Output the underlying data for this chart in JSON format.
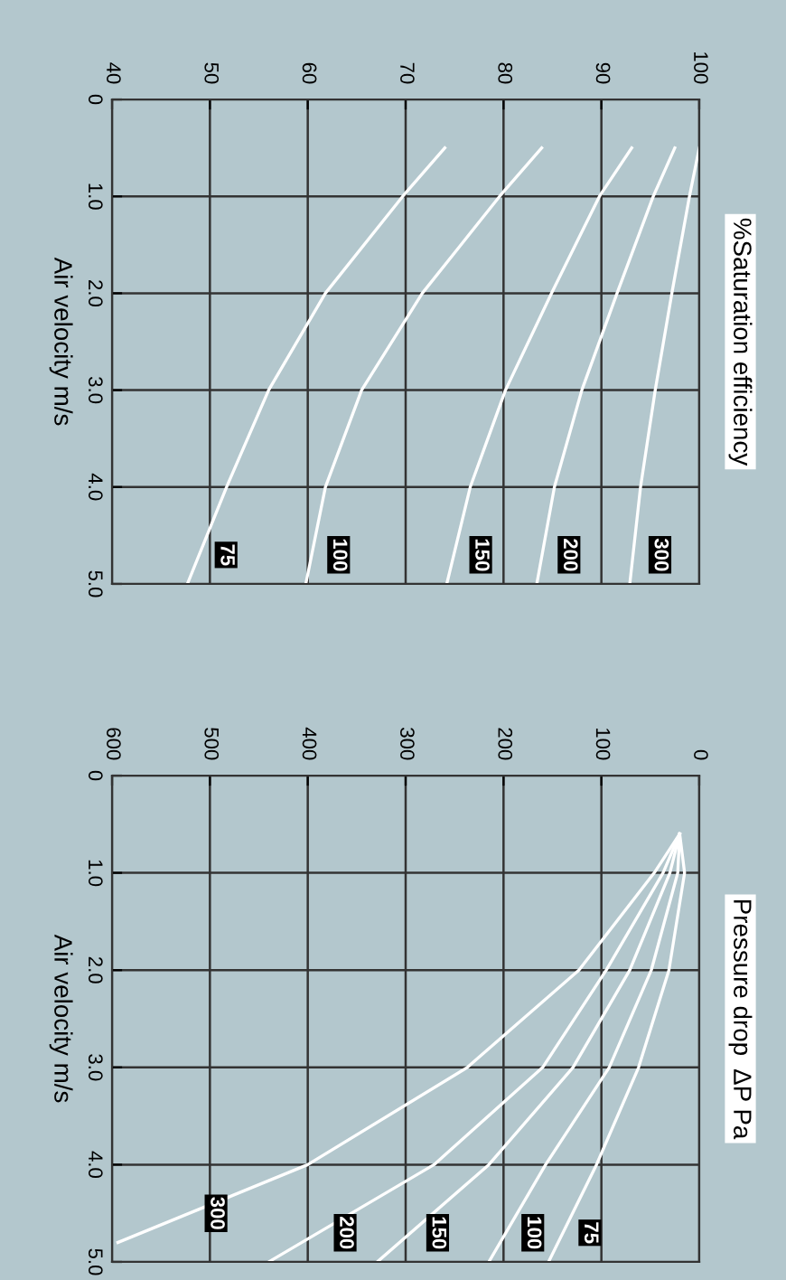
{
  "chart_data": [
    {
      "type": "line",
      "y2label": "%Saturation efficiency",
      "ylabel": "Air velocity m/s",
      "ylim": [
        5,
        0
      ],
      "yticks": [
        0,
        {
          "value": 1,
          "label": "1.0"
        },
        {
          "value": 2,
          "label": "2.0"
        },
        {
          "value": 3,
          "label": "3.0"
        },
        {
          "value": 4,
          "label": "4.0"
        },
        {
          "value": 5,
          "label": "5.0"
        }
      ],
      "xlim": [
        40,
        100
      ],
      "xticks": [
        40,
        50,
        60,
        70,
        80,
        90,
        100
      ],
      "grid": true,
      "legend": false,
      "marker": "none",
      "line_style": "solid",
      "series": [
        {
          "name": "75",
          "color": "#ffffff",
          "x": [
            74.0,
            69.7,
            61.8,
            56.0,
            51.7,
            47.7
          ],
          "values": [
            0.5,
            1,
            2,
            3,
            4,
            5
          ]
        },
        {
          "name": "100",
          "color": "#ffffff",
          "x": [
            83.9,
            79.6,
            71.7,
            65.5,
            61.8,
            59.8
          ],
          "values": [
            0.5,
            1,
            2,
            3,
            4,
            5
          ]
        },
        {
          "name": "150",
          "color": "#ffffff",
          "x": [
            93.1,
            89.8,
            84.9,
            80.2,
            76.6,
            74.2
          ],
          "values": [
            0.5,
            1,
            2,
            3,
            4,
            5
          ]
        },
        {
          "name": "200",
          "color": "#ffffff",
          "x": [
            97.5,
            95.3,
            91.6,
            88.0,
            85.2,
            83.4
          ],
          "values": [
            0.5,
            1,
            2,
            3,
            4,
            5
          ]
        },
        {
          "name": "300",
          "color": "#ffffff",
          "x": [
            100,
            99.0,
            97.2,
            95.5,
            94.0,
            92.9
          ],
          "values": [
            0.5,
            1,
            2,
            3,
            4,
            5
          ]
        }
      ]
    },
    {
      "type": "line",
      "y2label": "Pressure drop  ΔP Pa",
      "ylabel": "Air velocity m/s",
      "ylim": [
        5,
        0
      ],
      "yticks": [
        0,
        {
          "value": 1,
          "label": "1.0"
        },
        {
          "value": 2,
          "label": "2.0"
        },
        {
          "value": 3,
          "label": "3.0"
        },
        {
          "value": 4,
          "label": "4.0"
        },
        {
          "value": 5,
          "label": "5.0"
        }
      ],
      "xlim": [
        600,
        0
      ],
      "xticks": [
        600,
        500,
        400,
        300,
        200,
        100,
        0
      ],
      "grid": true,
      "legend": false,
      "marker": "none",
      "line_style": "solid",
      "series": [
        {
          "name": "300",
          "color": "#ffffff",
          "x": [
            20,
            46,
            123,
            237,
            400,
            594
          ],
          "values": [
            0.6,
            1,
            2,
            3,
            4,
            4.8
          ]
        },
        {
          "name": "200",
          "color": "#ffffff",
          "x": [
            20,
            37,
            95,
            160,
            271,
            440
          ],
          "values": [
            0.6,
            1,
            2,
            3,
            4,
            5
          ]
        },
        {
          "name": "150",
          "color": "#ffffff",
          "x": [
            20,
            30,
            71,
            129,
            215,
            329
          ],
          "values": [
            0.6,
            1,
            2,
            3,
            4,
            5
          ]
        },
        {
          "name": "100",
          "color": "#ffffff",
          "x": [
            20,
            22,
            49,
            92,
            157,
            215
          ],
          "values": [
            0.6,
            1,
            2,
            3,
            4,
            5
          ]
        },
        {
          "name": "75",
          "color": "#ffffff",
          "x": [
            20,
            15,
            31,
            62,
            105,
            154
          ],
          "values": [
            0.6,
            1,
            2,
            3,
            4,
            5
          ]
        }
      ]
    }
  ]
}
